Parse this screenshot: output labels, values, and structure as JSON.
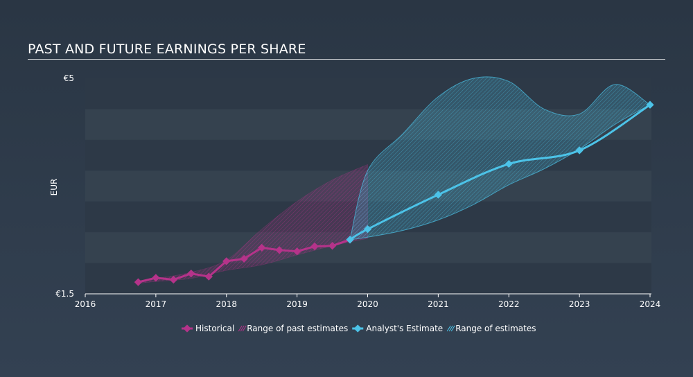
{
  "chart_data": {
    "type": "line",
    "title": "PAST AND FUTURE EARNINGS PER SHARE",
    "ylabel": "EUR",
    "ylim": [
      1.5,
      5
    ],
    "y_tick_labels": [
      "€5",
      "€1.5"
    ],
    "x_tick_labels": [
      "2016",
      "2017",
      "2018",
      "2019",
      "2020",
      "2021",
      "2022",
      "2023",
      "2024"
    ],
    "xlim": [
      2016,
      2024.15
    ],
    "series": [
      {
        "name": "Historical",
        "color": "#b5338a",
        "x": [
          2016.75,
          2017.0,
          2017.25,
          2017.5,
          2017.75,
          2018.0,
          2018.25,
          2018.5,
          2018.75,
          2019.0,
          2019.25,
          2019.5,
          2019.75
        ],
        "y": [
          1.69,
          1.76,
          1.73,
          1.83,
          1.78,
          2.03,
          2.07,
          2.25,
          2.21,
          2.19,
          2.27,
          2.28,
          2.38
        ]
      },
      {
        "name": "Analyst's Estimate",
        "color": "#4cc3e8",
        "x": [
          2019.75,
          2020.0,
          2021.0,
          2022.0,
          2023.0,
          2024.0
        ],
        "y": [
          2.38,
          2.55,
          3.11,
          3.61,
          3.83,
          4.57
        ]
      }
    ],
    "ranges": [
      {
        "name": "Range of past estimates",
        "color": "#b5338a",
        "x": [
          2016.75,
          2017.0,
          2017.5,
          2018.0,
          2018.5,
          2019.0,
          2019.5,
          2020.0
        ],
        "upper": [
          1.71,
          1.75,
          1.85,
          2.05,
          2.55,
          3.0,
          3.35,
          3.6
        ],
        "lower": [
          1.67,
          1.7,
          1.75,
          1.88,
          1.97,
          2.13,
          2.28,
          2.4
        ]
      },
      {
        "name": "Range of estimates",
        "color": "#4cc3e8",
        "x": [
          2019.75,
          2020.0,
          2020.5,
          2021.0,
          2021.5,
          2022.0,
          2022.5,
          2023.0,
          2023.5,
          2024.0
        ],
        "upper": [
          2.38,
          3.5,
          4.1,
          4.7,
          5.0,
          4.95,
          4.5,
          4.42,
          4.9,
          4.57
        ],
        "lower": [
          2.38,
          2.42,
          2.53,
          2.7,
          2.95,
          3.27,
          3.53,
          3.85,
          4.25,
          4.57
        ]
      }
    ],
    "legend": {
      "placement": "bottom-center",
      "entries": [
        "Historical",
        "Range of past estimates",
        "Analyst's Estimate",
        "Range of estimates"
      ]
    },
    "grid": true
  }
}
